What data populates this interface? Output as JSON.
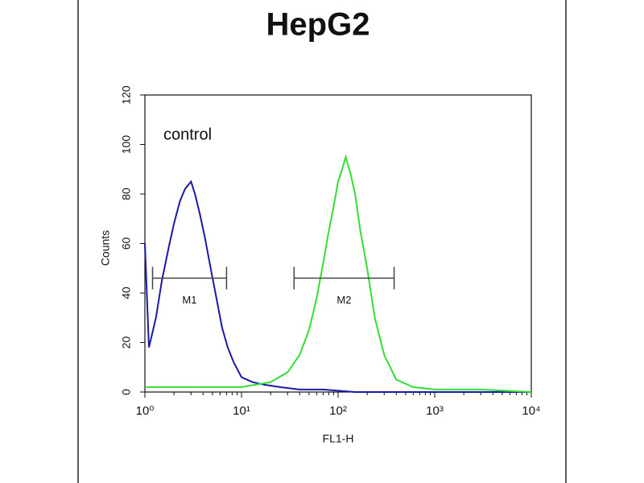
{
  "chart_data": {
    "type": "line",
    "title": "HepG2",
    "y_label": "Counts",
    "x_label": "FL1-H",
    "annotation": "control",
    "x_scale": "log",
    "xlim": [
      1,
      10000
    ],
    "xticks": [
      {
        "value": 1,
        "label": "10⁰"
      },
      {
        "value": 10,
        "label": "10¹"
      },
      {
        "value": 100,
        "label": "10²"
      },
      {
        "value": 1000,
        "label": "10³"
      },
      {
        "value": 10000,
        "label": "10⁴"
      }
    ],
    "ylim": [
      0,
      120
    ],
    "yticks": [
      0,
      20,
      40,
      60,
      80,
      100,
      120
    ],
    "series": [
      {
        "name": "control",
        "color": "#1a1aa6",
        "x": [
          1,
          1.1,
          1.3,
          1.5,
          1.8,
          2,
          2.3,
          2.6,
          3,
          3.3,
          3.7,
          4.2,
          4.8,
          5.5,
          6.3,
          7.2,
          8.3,
          10,
          13,
          17,
          25,
          40,
          70,
          150,
          400,
          1000,
          3000,
          10000
        ],
        "values": [
          60,
          18,
          30,
          45,
          60,
          68,
          77,
          82,
          85,
          80,
          72,
          62,
          50,
          38,
          26,
          18,
          12,
          6,
          4,
          3,
          2,
          1,
          1,
          0,
          0,
          0,
          0,
          0
        ]
      },
      {
        "color": "#33dd33",
        "x": [
          1,
          2,
          5,
          10,
          20,
          30,
          40,
          50,
          60,
          70,
          80,
          90,
          100,
          110,
          120,
          135,
          150,
          170,
          200,
          240,
          300,
          400,
          600,
          1000,
          3000,
          10000
        ],
        "values": [
          2,
          2,
          2,
          2,
          4,
          8,
          15,
          25,
          38,
          52,
          65,
          75,
          85,
          90,
          95,
          88,
          80,
          65,
          50,
          30,
          15,
          5,
          2,
          1,
          1,
          0
        ]
      }
    ],
    "markers": [
      {
        "label": "M1",
        "range": [
          1.2,
          7
        ],
        "y": 46
      },
      {
        "label": "M2",
        "range": [
          35,
          380
        ],
        "y": 46
      }
    ]
  }
}
